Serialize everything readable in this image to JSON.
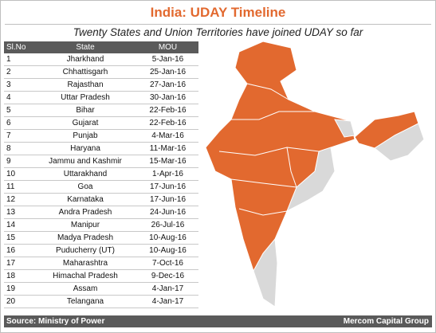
{
  "header": {
    "title": "India: UDAY Timeline",
    "subtitle": "Twenty States and Union Territories have joined UDAY so far"
  },
  "table": {
    "columns": [
      "Sl.No",
      "State",
      "MOU"
    ],
    "rows": [
      [
        "1",
        "Jharkhand",
        "5-Jan-16"
      ],
      [
        "2",
        "Chhattisgarh",
        "25-Jan-16"
      ],
      [
        "3",
        "Rajasthan",
        "27-Jan-16"
      ],
      [
        "4",
        "Uttar Pradesh",
        "30-Jan-16"
      ],
      [
        "5",
        "Bihar",
        "22-Feb-16"
      ],
      [
        "6",
        "Gujarat",
        "22-Feb-16"
      ],
      [
        "7",
        "Punjab",
        "4-Mar-16"
      ],
      [
        "8",
        "Haryana",
        "11-Mar-16"
      ],
      [
        "9",
        "Jammu and Kashmir",
        "15-Mar-16"
      ],
      [
        "10",
        "Uttarakhand",
        "1-Apr-16"
      ],
      [
        "11",
        "Goa",
        "17-Jun-16"
      ],
      [
        "12",
        "Karnataka",
        "17-Jun-16"
      ],
      [
        "13",
        "Andra Pradesh",
        "24-Jun-16"
      ],
      [
        "14",
        "Manipur",
        "26-Jul-16"
      ],
      [
        "15",
        "Madya Pradesh",
        "10-Aug-16"
      ],
      [
        "16",
        "Puducherry (UT)",
        "10-Aug-16"
      ],
      [
        "17",
        "Maharashtra",
        "7-Oct-16"
      ],
      [
        "18",
        "Himachal Pradesh",
        "9-Dec-16"
      ],
      [
        "19",
        "Assam",
        "4-Jan-17"
      ],
      [
        "20",
        "Telangana",
        "4-Jan-17"
      ]
    ]
  },
  "footer": {
    "source": "Source: Ministry of Power",
    "credit": "Mercom Capital Group"
  }
}
